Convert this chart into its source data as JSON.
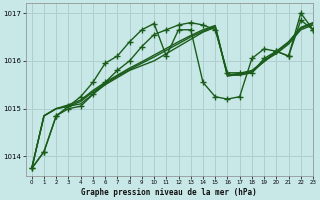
{
  "title": "Graphe pression niveau de la mer (hPa)",
  "bg_color": "#c8e8e8",
  "grid_color": "#b0cece",
  "line_color": "#1a5c1a",
  "xlim": [
    -0.5,
    23
  ],
  "ylim": [
    1013.6,
    1017.2
  ],
  "yticks": [
    1014,
    1015,
    1016,
    1017
  ],
  "xticks": [
    0,
    1,
    2,
    3,
    4,
    5,
    6,
    7,
    8,
    9,
    10,
    11,
    12,
    13,
    14,
    15,
    16,
    17,
    18,
    19,
    20,
    21,
    22,
    23
  ],
  "series": [
    {
      "y": [
        1013.75,
        1014.1,
        1014.85,
        1015.0,
        1015.05,
        1015.3,
        1015.55,
        1015.8,
        1016.0,
        1016.3,
        1016.55,
        1016.65,
        1016.75,
        1016.8,
        1016.75,
        1016.65,
        1015.75,
        1015.75,
        1015.75,
        1016.05,
        1016.2,
        1016.1,
        1016.85,
        1016.65
      ],
      "lw": 1.0,
      "marker": "+",
      "ms": 4,
      "ls": "-"
    },
    {
      "y": [
        1013.75,
        1014.85,
        1015.0,
        1015.05,
        1015.1,
        1015.3,
        1015.5,
        1015.65,
        1015.8,
        1015.9,
        1016.0,
        1016.15,
        1016.3,
        1016.45,
        1016.6,
        1016.7,
        1015.7,
        1015.7,
        1015.75,
        1016.0,
        1016.15,
        1016.35,
        1016.65,
        1016.75
      ],
      "lw": 1.0,
      "marker": null,
      "ms": 0,
      "ls": "-"
    },
    {
      "y": [
        1013.75,
        1014.85,
        1015.0,
        1015.05,
        1015.15,
        1015.35,
        1015.52,
        1015.68,
        1015.82,
        1015.95,
        1016.08,
        1016.22,
        1016.36,
        1016.5,
        1016.62,
        1016.72,
        1015.68,
        1015.72,
        1015.78,
        1015.98,
        1016.18,
        1016.38,
        1016.68,
        1016.78
      ],
      "lw": 1.0,
      "marker": null,
      "ms": 0,
      "ls": "-"
    },
    {
      "y": [
        1013.75,
        1014.85,
        1015.0,
        1015.08,
        1015.18,
        1015.38,
        1015.55,
        1015.7,
        1015.85,
        1015.98,
        1016.12,
        1016.26,
        1016.4,
        1016.53,
        1016.65,
        1016.74,
        1015.7,
        1015.74,
        1015.8,
        1016.0,
        1016.2,
        1016.4,
        1016.7,
        1016.8
      ],
      "lw": 1.0,
      "marker": null,
      "ms": 0,
      "ls": "-"
    },
    {
      "y": [
        1013.75,
        1014.1,
        1014.85,
        1015.05,
        1015.25,
        1015.55,
        1015.95,
        1016.1,
        1016.4,
        1016.65,
        1016.78,
        1016.1,
        1016.65,
        1016.65,
        1015.55,
        1015.25,
        1015.2,
        1015.25,
        1016.05,
        1016.25,
        1016.2,
        1016.1,
        1017.0,
        1016.65
      ],
      "lw": 1.0,
      "marker": "+",
      "ms": 4,
      "ls": "-"
    }
  ]
}
